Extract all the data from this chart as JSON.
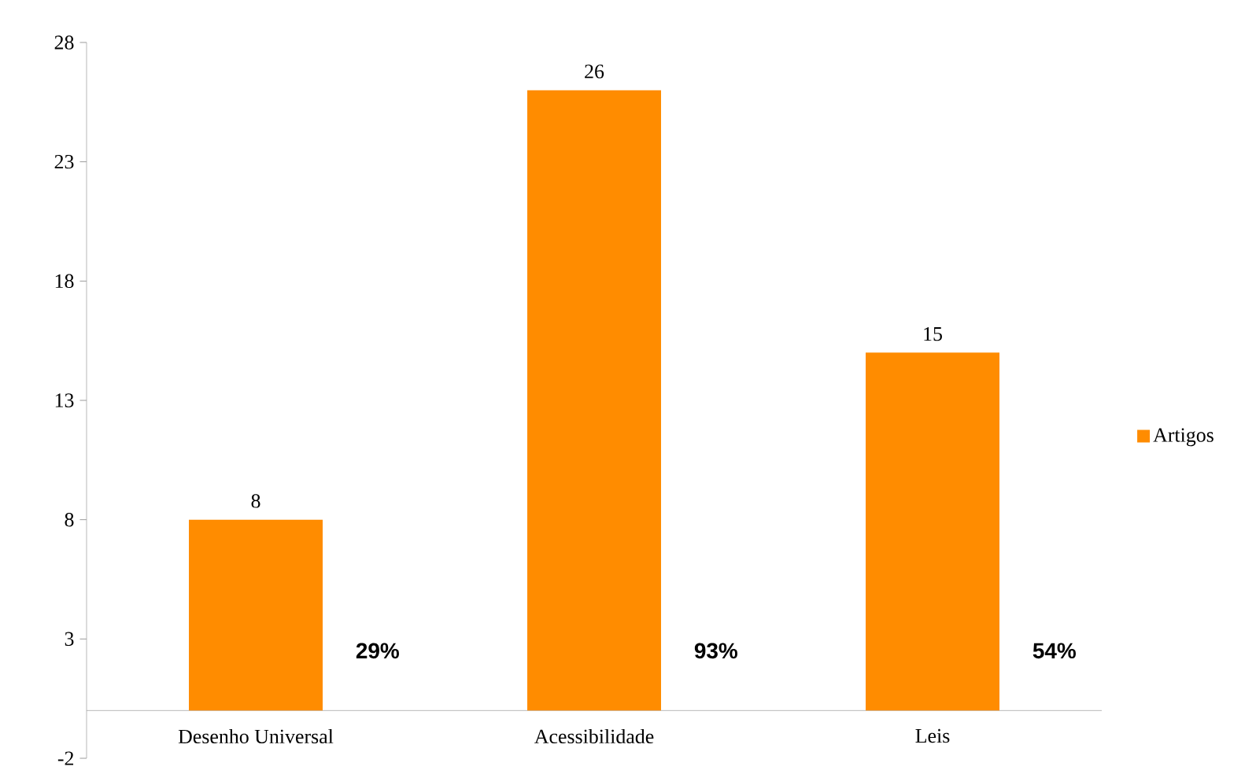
{
  "chart_data": {
    "type": "bar",
    "categories": [
      "Desenho Universal",
      "Acessibilidade",
      "Leis"
    ],
    "series": [
      {
        "name": "Artigos",
        "color": "#ff8c00",
        "values": [
          8,
          26,
          15
        ]
      }
    ],
    "ylim": [
      -2,
      28
    ],
    "yticks": [
      -2,
      3,
      8,
      13,
      18,
      23,
      28
    ],
    "data_labels": true,
    "legend": "right",
    "grid": false,
    "annotations": [
      "29%",
      "93%",
      "54%"
    ]
  }
}
